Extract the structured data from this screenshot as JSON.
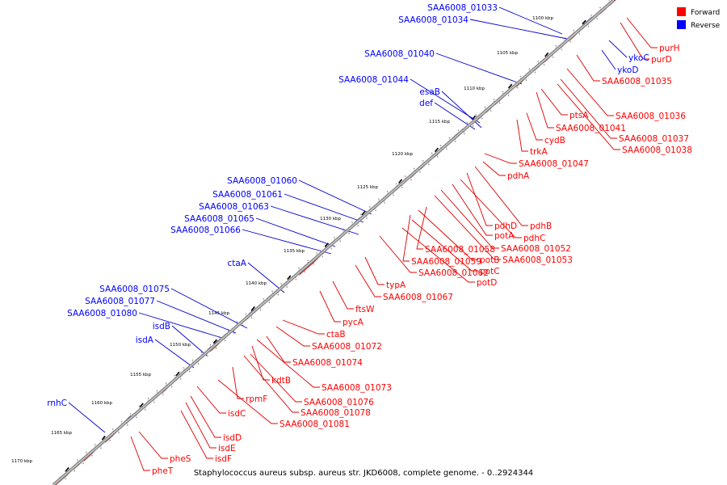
{
  "caption": "Staphylococcus aureus subsp. aureus str. JKD6008, complete genome. - 0..2924344",
  "legend": [
    {
      "label": "Forward",
      "color": "#ff0000"
    },
    {
      "label": "Reverse",
      "color": "#0000ff"
    }
  ],
  "colors": {
    "forward": "#ff0000",
    "reverse": "#0000ff",
    "leader_forward": "#e00000",
    "leader_reverse": "#0000cc",
    "backbone": "#888888"
  },
  "ticks": [
    "1100 kbp",
    "1105 kbp",
    "1110 kbp",
    "1115 kbp",
    "1120 kbp",
    "1125 kbp",
    "1130 kbp",
    "1135 kbp",
    "1140 kbp",
    "1145 kbp",
    "1150 kbp",
    "1155 kbp",
    "1160 kbp",
    "1165 kbp",
    "1170 kbp"
  ],
  "reverse_labels": [
    "SAA6008_01033",
    "SAA6008_01034",
    "SAA6008_01040",
    "SAA6008_01044",
    "esaB",
    "def",
    "SAA6008_01060",
    "SAA6008_01061",
    "SAA6008_01063",
    "SAA6008_01065",
    "SAA6008_01066",
    "ctaA",
    "SAA6008_01075",
    "SAA6008_01077",
    "SAA6008_01080",
    "isdB",
    "isdA",
    "rnhC",
    "ykoC",
    "ykoD"
  ],
  "forward_labels": [
    "purH",
    "purD",
    "SAA6008_01035",
    "SAA6008_01036",
    "ptsA",
    "SAA6008_01041",
    "cydB",
    "SAA6008_01037",
    "SAA6008_01038",
    "trkA",
    "SAA6008_01047",
    "pdhA",
    "pdhB",
    "pdhD",
    "pdhC",
    "potA",
    "SAA6008_01052",
    "SAA6008_01053",
    "SAA6008_01058",
    "potB",
    "SAA6008_01059",
    "potC",
    "SAA6008_01062",
    "potD",
    "typA",
    "SAA6008_01067",
    "ftsW",
    "pycA",
    "ctaB",
    "SAA6008_01072",
    "SAA6008_01074",
    "SAA6008_01073",
    "kdtB",
    "SAA6008_01076",
    "rpmF",
    "SAA6008_01078",
    "SAA6008_01081",
    "isdC",
    "isdD",
    "isdE",
    "isdF",
    "pheS",
    "pheT"
  ]
}
